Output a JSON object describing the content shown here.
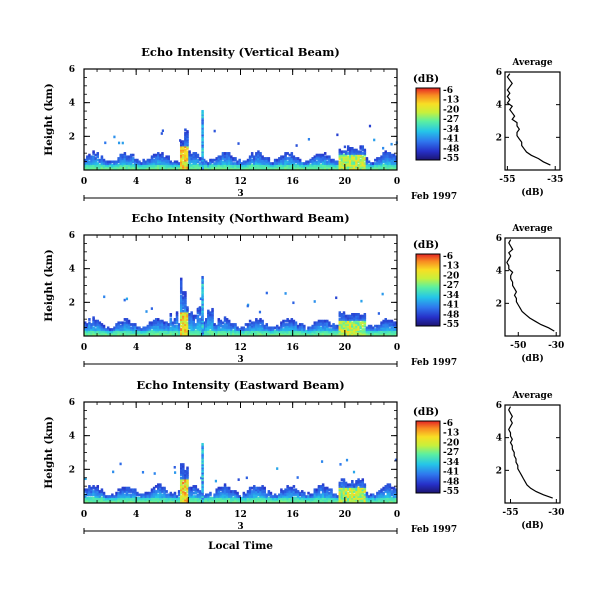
{
  "chart_data": [
    {
      "type": "heatmap",
      "title": "Echo Intensity (Vertical Beam)",
      "ylabel": "Height (km)",
      "xticks": [
        "0",
        "4",
        "8",
        "12",
        "16",
        "20",
        "0"
      ],
      "yticks": [
        "2",
        "4",
        "6"
      ],
      "xlim": [
        0,
        24
      ],
      "ylim": [
        0,
        6
      ],
      "date_label": "3",
      "date_extra": "Feb 1997",
      "colorbar": {
        "unit": "(dB)",
        "labels": [
          "-6",
          "-13",
          "-20",
          "-27",
          "-34",
          "-41",
          "-48",
          "-55"
        ]
      },
      "profile": {
        "title": "Average",
        "xlabel": "(dB)",
        "xticks": [
          "-55",
          "-35"
        ],
        "xlim": [
          -56,
          -33
        ],
        "yticks": [
          "2",
          "4",
          "6"
        ],
        "ylim": [
          0,
          6
        ],
        "heights": [
          0.3,
          0.5,
          0.7,
          0.9,
          1.1,
          1.3,
          1.5,
          1.7,
          1.9,
          2.1,
          2.3,
          2.5,
          2.7,
          2.9,
          3.1,
          3.3,
          3.5,
          3.7,
          3.9,
          4.1,
          4.3,
          4.5,
          4.7,
          4.9,
          5.1,
          5.3,
          5.5,
          5.7,
          5.9
        ],
        "values": [
          -37,
          -40,
          -42,
          -45,
          -47,
          -48,
          -49,
          -49,
          -50,
          -51,
          -51,
          -50,
          -51,
          -51,
          -53,
          -52,
          -53,
          -54,
          -53,
          -55,
          -54,
          -55,
          -54,
          -55,
          -54,
          -53,
          -54,
          -55,
          -54
        ]
      }
    },
    {
      "type": "heatmap",
      "title": "Echo Intensity (Northward Beam)",
      "ylabel": "Height (km)",
      "xticks": [
        "0",
        "4",
        "8",
        "12",
        "16",
        "20",
        "0"
      ],
      "yticks": [
        "2",
        "4",
        "6"
      ],
      "xlim": [
        0,
        24
      ],
      "ylim": [
        0,
        6
      ],
      "date_label": "3",
      "date_extra": "Feb 1997",
      "colorbar": {
        "unit": "(dB)",
        "labels": [
          "-6",
          "-13",
          "-20",
          "-27",
          "-34",
          "-41",
          "-48",
          "-55"
        ]
      },
      "profile": {
        "title": "Average",
        "xlabel": "(dB)",
        "xticks": [
          "-50",
          "-30"
        ],
        "xlim": [
          -57,
          -28
        ],
        "yticks": [
          "2",
          "4",
          "6"
        ],
        "ylim": [
          0,
          6
        ],
        "heights": [
          0.3,
          0.5,
          0.7,
          0.9,
          1.1,
          1.3,
          1.5,
          1.7,
          1.9,
          2.1,
          2.3,
          2.5,
          2.7,
          2.9,
          3.1,
          3.3,
          3.5,
          3.7,
          3.9,
          4.1,
          4.3,
          4.5,
          4.7,
          4.9,
          5.1,
          5.3,
          5.5,
          5.7,
          5.9
        ],
        "values": [
          -31,
          -34,
          -38,
          -41,
          -44,
          -46,
          -48,
          -49,
          -50,
          -51,
          -51,
          -52,
          -51,
          -52,
          -53,
          -53,
          -54,
          -54,
          -53,
          -55,
          -55,
          -56,
          -55,
          -54,
          -55,
          -53,
          -54,
          -55,
          -54
        ]
      }
    },
    {
      "type": "heatmap",
      "title": "Echo Intensity (Eastward Beam)",
      "ylabel": "Height (km)",
      "xlabel": "Local Time",
      "xticks": [
        "0",
        "4",
        "8",
        "12",
        "16",
        "20",
        "0"
      ],
      "yticks": [
        "2",
        "4",
        "6"
      ],
      "xlim": [
        0,
        24
      ],
      "ylim": [
        0,
        6
      ],
      "date_label": "3",
      "date_extra": "Feb 1997",
      "colorbar": {
        "unit": "(dB)",
        "labels": [
          "-6",
          "-13",
          "-20",
          "-27",
          "-34",
          "-41",
          "-48",
          "-55"
        ]
      },
      "profile": {
        "title": "Average",
        "xlabel": "(dB)",
        "xticks": [
          "-55",
          "-30"
        ],
        "xlim": [
          -58,
          -28
        ],
        "yticks": [
          "2",
          "4",
          "6"
        ],
        "ylim": [
          0,
          6
        ],
        "heights": [
          0.3,
          0.5,
          0.7,
          0.9,
          1.1,
          1.3,
          1.5,
          1.7,
          1.9,
          2.1,
          2.3,
          2.5,
          2.7,
          2.9,
          3.1,
          3.3,
          3.5,
          3.7,
          3.9,
          4.1,
          4.3,
          4.5,
          4.7,
          4.9,
          5.1,
          5.3,
          5.5,
          5.7,
          5.9
        ],
        "values": [
          -32,
          -37,
          -41,
          -44,
          -46,
          -47,
          -48,
          -49,
          -50,
          -51,
          -51,
          -52,
          -52,
          -53,
          -53,
          -54,
          -54,
          -55,
          -54,
          -55,
          -55,
          -56,
          -55,
          -54,
          -55,
          -54,
          -55,
          -56,
          -55
        ]
      }
    }
  ]
}
